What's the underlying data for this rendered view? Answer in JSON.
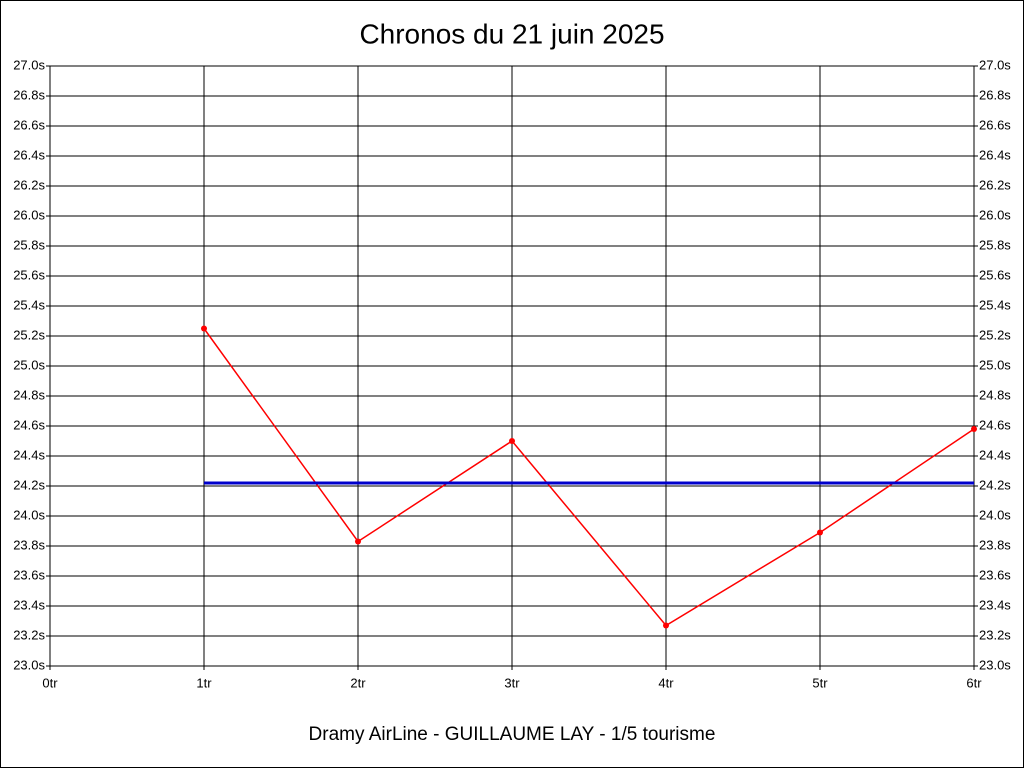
{
  "chart_data": {
    "type": "line",
    "title": "Chronos du 21 juin 2025",
    "footer": "Dramy AirLine - GUILLAUME LAY - 1/5 tourisme",
    "x": [
      1,
      2,
      3,
      4,
      5,
      6
    ],
    "series": [
      {
        "color": "#ff0000",
        "values": [
          25.25,
          23.83,
          24.5,
          23.27,
          23.89,
          24.58
        ],
        "markers": true
      },
      {
        "color": "#0000cc",
        "values": [
          24.22,
          24.22,
          24.22,
          24.22,
          24.22,
          24.22
        ],
        "markers": false
      }
    ],
    "xlim": [
      0,
      6
    ],
    "xticks": [
      {
        "value": 0,
        "label": "0tr"
      },
      {
        "value": 1,
        "label": "1tr"
      },
      {
        "value": 2,
        "label": "2tr"
      },
      {
        "value": 3,
        "label": "3tr"
      },
      {
        "value": 4,
        "label": "4tr"
      },
      {
        "value": 5,
        "label": "5tr"
      },
      {
        "value": 6,
        "label": "6tr"
      }
    ],
    "ylim": [
      23.0,
      27.0
    ],
    "yticks": [
      {
        "value": 23.0,
        "label": "23.0s"
      },
      {
        "value": 23.2,
        "label": "23.2s"
      },
      {
        "value": 23.4,
        "label": "23.4s"
      },
      {
        "value": 23.6,
        "label": "23.6s"
      },
      {
        "value": 23.8,
        "label": "23.8s"
      },
      {
        "value": 24.0,
        "label": "24.0s"
      },
      {
        "value": 24.2,
        "label": "24.2s"
      },
      {
        "value": 24.4,
        "label": "24.4s"
      },
      {
        "value": 24.6,
        "label": "24.6s"
      },
      {
        "value": 24.8,
        "label": "24.8s"
      },
      {
        "value": 25.0,
        "label": "25.0s"
      },
      {
        "value": 25.2,
        "label": "25.2s"
      },
      {
        "value": 25.4,
        "label": "25.4s"
      },
      {
        "value": 25.6,
        "label": "25.6s"
      },
      {
        "value": 25.8,
        "label": "25.8s"
      },
      {
        "value": 26.0,
        "label": "26.0s"
      },
      {
        "value": 26.2,
        "label": "26.2s"
      },
      {
        "value": 26.4,
        "label": "26.4s"
      },
      {
        "value": 26.6,
        "label": "26.6s"
      },
      {
        "value": 26.8,
        "label": "26.8s"
      },
      {
        "value": 27.0,
        "label": "27.0s"
      }
    ],
    "grid": true
  }
}
